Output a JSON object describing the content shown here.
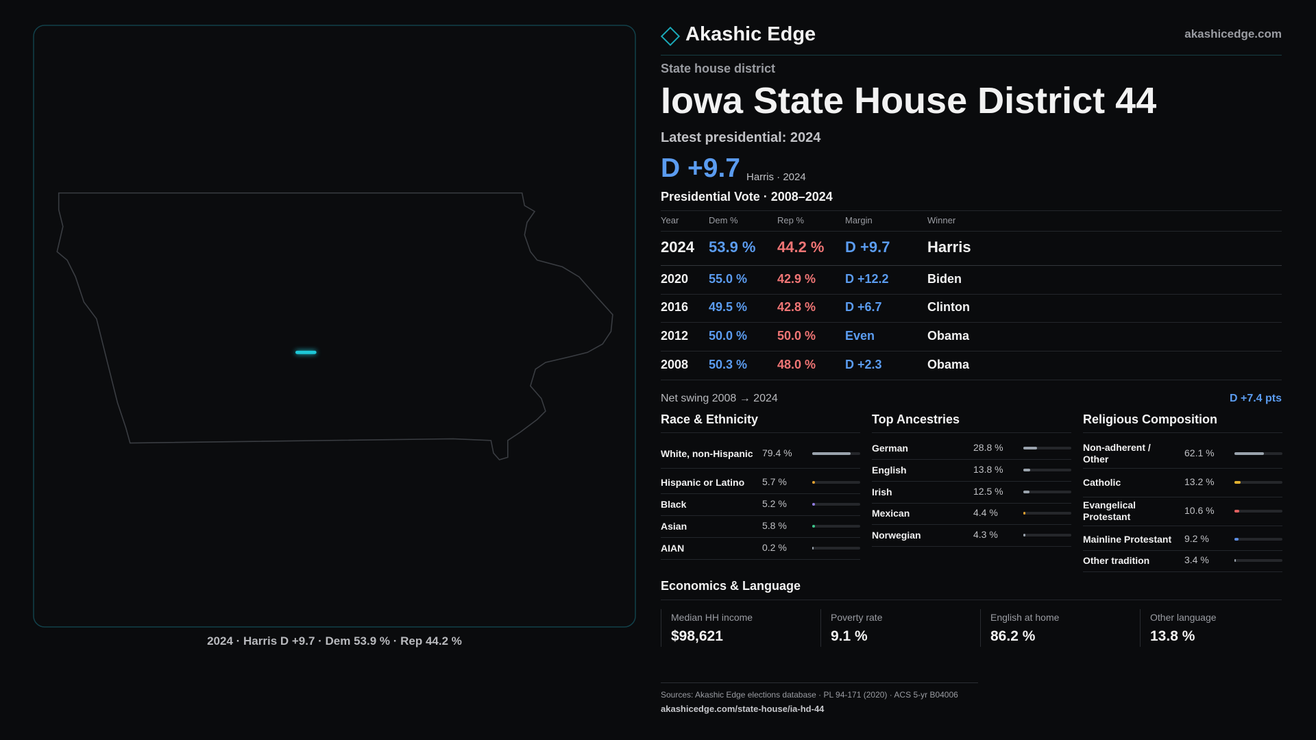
{
  "brand": {
    "name": "Akashic Edge",
    "site": "akashicedge.com"
  },
  "header": {
    "kicker": "State house district",
    "title": "Iowa State House District 44",
    "latest": "Latest presidential: 2024",
    "margin": "D +9.7",
    "margin_note": "Harris · 2024"
  },
  "map": {
    "caption": "2024 · Harris D +9.7 · Dem 53.9 % · Rep 44.2 %"
  },
  "vote_table": {
    "title": "Presidential Vote · 2008–2024",
    "columns": [
      "Year",
      "Dem %",
      "Rep %",
      "Margin",
      "Winner"
    ],
    "rows": [
      [
        "2024",
        "53.9 %",
        "44.2 %",
        "D +9.7",
        "Harris"
      ],
      [
        "2020",
        "55.0 %",
        "42.9 %",
        "D +12.2",
        "Biden"
      ],
      [
        "2016",
        "49.5 %",
        "42.8 %",
        "D +6.7",
        "Clinton"
      ],
      [
        "2012",
        "50.0 %",
        "50.0 %",
        "Even",
        "Obama"
      ],
      [
        "2008",
        "50.3 %",
        "48.0 %",
        "D +2.3",
        "Obama"
      ]
    ]
  },
  "swing": {
    "label": "Net swing 2008 → 2024",
    "value": "D +7.4 pts"
  },
  "demographics": {
    "xlim": [
      0,
      100
    ],
    "sections": [
      {
        "title": "Race & Ethnicity",
        "rows": [
          {
            "name": "White, non-Hispanic",
            "value": 79.4,
            "value_label": "79.4 %",
            "color": "#9aa3ad"
          },
          {
            "name": "Hispanic or Latino",
            "value": 5.7,
            "value_label": "5.7 %",
            "color": "#e0a030"
          },
          {
            "name": "Black",
            "value": 5.2,
            "value_label": "5.2 %",
            "color": "#8f7be0"
          },
          {
            "name": "Asian",
            "value": 5.8,
            "value_label": "5.8 %",
            "color": "#3cc48a"
          },
          {
            "name": "AIAN",
            "value": 0.2,
            "value_label": "0.2 %",
            "color": "#9aa3ad"
          }
        ]
      },
      {
        "title": "Top Ancestries",
        "rows": [
          {
            "name": "German",
            "value": 28.8,
            "value_label": "28.8 %",
            "color": "#9aa3ad"
          },
          {
            "name": "English",
            "value": 13.8,
            "value_label": "13.8 %",
            "color": "#9aa3ad"
          },
          {
            "name": "Irish",
            "value": 12.5,
            "value_label": "12.5 %",
            "color": "#9aa3ad"
          },
          {
            "name": "Mexican",
            "value": 4.4,
            "value_label": "4.4 %",
            "color": "#e0a030"
          },
          {
            "name": "Norwegian",
            "value": 4.3,
            "value_label": "4.3 %",
            "color": "#9aa3ad"
          }
        ]
      },
      {
        "title": "Religious Composition",
        "rows": [
          {
            "name": "Non-adherent / Other",
            "value": 62.1,
            "value_label": "62.1 %",
            "color": "#9aa3ad"
          },
          {
            "name": "Catholic",
            "value": 13.2,
            "value_label": "13.2 %",
            "color": "#e0b030"
          },
          {
            "name": "Evangelical Protestant",
            "value": 10.6,
            "value_label": "10.6 %",
            "color": "#e06060"
          },
          {
            "name": "Mainline Protestant",
            "value": 9.2,
            "value_label": "9.2 %",
            "color": "#5b8ce0"
          },
          {
            "name": "Other tradition",
            "value": 3.4,
            "value_label": "3.4 %",
            "color": "#9aa3ad"
          }
        ]
      }
    ]
  },
  "economics": {
    "title": "Economics & Language",
    "cards": [
      {
        "label": "Median HH income",
        "value": "$98,621"
      },
      {
        "label": "Poverty rate",
        "value": "9.1 %"
      },
      {
        "label": "English at home",
        "value": "86.2 %"
      },
      {
        "label": "Other language",
        "value": "13.8 %"
      }
    ]
  },
  "footer": {
    "sources": "Sources: Akashic Edge elections database · PL 94-171 (2020) · ACS 5-yr B04006",
    "url": "akashicedge.com/state-house/ia-hd-44"
  }
}
